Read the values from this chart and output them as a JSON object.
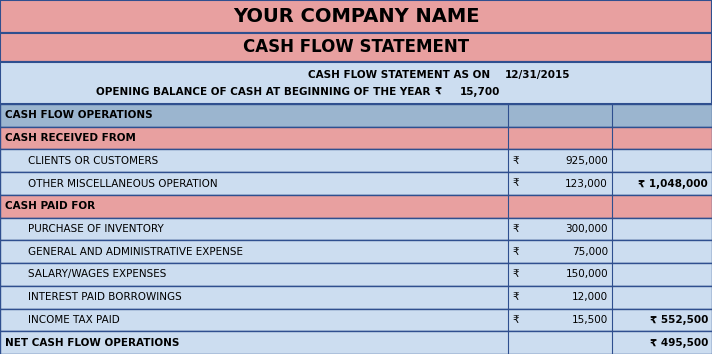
{
  "title1": "YOUR COMPANY NAME",
  "title2": "CASH FLOW STATEMENT",
  "subtitle1_label": "CASH FLOW STATEMENT AS ON",
  "subtitle1_value": "12/31/2015",
  "subtitle2_label": "OPENING BALANCE OF CASH AT BEGINNING OF THE YEAR",
  "subtitle2_symbol": "₹",
  "subtitle2_value": "15,700",
  "color_header": "#E8A0A0",
  "color_section": "#9BB5CF",
  "color_subheader_pink": "#E8A0A0",
  "color_light_blue": "#CCDDF0",
  "border_color": "#2F4F8F",
  "rows": [
    {
      "type": "section_header",
      "label": "CASH FLOW OPERATIONS",
      "symbol": "",
      "col1": "",
      "col2": ""
    },
    {
      "type": "subheader",
      "label": "CASH RECEIVED FROM",
      "symbol": "",
      "col1": "",
      "col2": ""
    },
    {
      "type": "data",
      "label": "CLIENTS OR CUSTOMERS",
      "symbol": "₹",
      "col1": "925,000",
      "col2": ""
    },
    {
      "type": "data",
      "label": "OTHER MISCELLANEOUS OPERATION",
      "symbol": "₹",
      "col1": "123,000",
      "col2": "₹ 1,048,000"
    },
    {
      "type": "subheader",
      "label": "CASH PAID FOR",
      "symbol": "",
      "col1": "",
      "col2": ""
    },
    {
      "type": "data",
      "label": "PURCHASE OF INVENTORY",
      "symbol": "₹",
      "col1": "300,000",
      "col2": ""
    },
    {
      "type": "data",
      "label": "GENERAL AND ADMINISTRATIVE EXPENSE",
      "symbol": "₹",
      "col1": "75,000",
      "col2": ""
    },
    {
      "type": "data",
      "label": "SALARY/WAGES EXPENSES",
      "symbol": "₹",
      "col1": "150,000",
      "col2": ""
    },
    {
      "type": "data",
      "label": "INTEREST PAID BORROWINGS",
      "symbol": "₹",
      "col1": "12,000",
      "col2": ""
    },
    {
      "type": "data",
      "label": "INCOME TAX PAID",
      "symbol": "₹",
      "col1": "15,500",
      "col2": "₹ 552,500"
    },
    {
      "type": "net",
      "label": "NET CASH FLOW OPERATIONS",
      "symbol": "",
      "col1": "",
      "col2": "₹ 495,500"
    }
  ]
}
